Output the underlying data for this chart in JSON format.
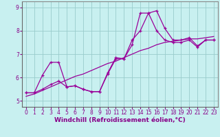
{
  "xlabel": "Windchill (Refroidissement éolien,°C)",
  "bg_color": "#c8f0f0",
  "line_color": "#990099",
  "grid_color": "#99cccc",
  "xlim": [
    -0.5,
    23.5
  ],
  "ylim": [
    4.75,
    9.25
  ],
  "xticks": [
    0,
    1,
    2,
    3,
    4,
    5,
    6,
    7,
    8,
    9,
    10,
    11,
    12,
    13,
    14,
    15,
    16,
    17,
    18,
    19,
    20,
    21,
    22,
    23
  ],
  "yticks": [
    5,
    6,
    7,
    8,
    9
  ],
  "line1_x": [
    0,
    1,
    2,
    3,
    4,
    5,
    6,
    7,
    8,
    9,
    10,
    11,
    12,
    13,
    14,
    15,
    16,
    17,
    18,
    19,
    20,
    21,
    22,
    23
  ],
  "line1_y": [
    5.35,
    5.35,
    6.1,
    6.65,
    6.65,
    5.6,
    5.65,
    5.5,
    5.4,
    5.4,
    6.2,
    6.85,
    6.8,
    7.6,
    8.0,
    8.75,
    8.0,
    7.6,
    7.5,
    7.5,
    7.6,
    7.3,
    7.6,
    7.6
  ],
  "line2_x": [
    0,
    1,
    2,
    3,
    4,
    5,
    6,
    7,
    8,
    9,
    10,
    11,
    12,
    13,
    14,
    15,
    16,
    17,
    18,
    19,
    20,
    21,
    22,
    23
  ],
  "line2_y": [
    5.35,
    5.35,
    5.5,
    5.7,
    5.85,
    5.6,
    5.65,
    5.5,
    5.4,
    5.4,
    6.15,
    6.8,
    6.8,
    7.4,
    8.75,
    8.75,
    8.85,
    8.1,
    7.6,
    7.6,
    7.7,
    7.35,
    7.6,
    7.6
  ],
  "line3_x": [
    0,
    1,
    2,
    3,
    4,
    5,
    6,
    7,
    8,
    9,
    10,
    11,
    12,
    13,
    14,
    15,
    16,
    17,
    18,
    19,
    20,
    21,
    22,
    23
  ],
  "line3_y": [
    5.2,
    5.3,
    5.45,
    5.6,
    5.75,
    5.9,
    6.05,
    6.15,
    6.3,
    6.45,
    6.6,
    6.7,
    6.85,
    7.0,
    7.15,
    7.25,
    7.4,
    7.5,
    7.55,
    7.6,
    7.65,
    7.65,
    7.7,
    7.75
  ],
  "xlabel_fontsize": 6.5,
  "tick_fontsize": 5.5,
  "tick_color": "#880088",
  "spine_color": "#888888",
  "xlabel_color": "#880088"
}
